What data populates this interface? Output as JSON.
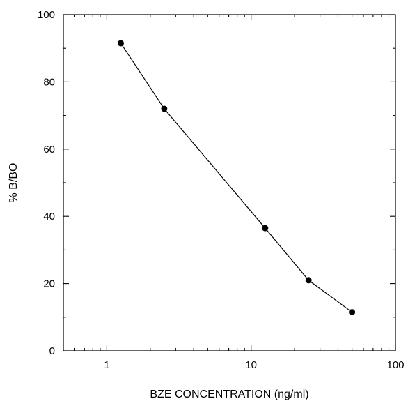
{
  "chart_data": {
    "type": "line",
    "title": "",
    "xlabel": "BZE CONCENTRATION  (ng/ml)",
    "ylabel": "% B/BO",
    "x_scale": "log",
    "xlim": [
      0.5,
      100
    ],
    "ylim": [
      0,
      100
    ],
    "x_ticks": [
      1,
      10,
      100
    ],
    "x_tick_labels": [
      "1",
      "10",
      "100"
    ],
    "y_ticks": [
      0,
      20,
      40,
      60,
      80,
      100
    ],
    "y_tick_labels": [
      "0",
      "20",
      "40",
      "60",
      "80",
      "100"
    ],
    "grid": false,
    "series": [
      {
        "x": [
          1.25,
          2.5,
          12.5,
          25,
          50
        ],
        "y": [
          91.5,
          72,
          36.5,
          21,
          11.5
        ],
        "color": "#000000",
        "marker": "filled-circle"
      }
    ]
  }
}
